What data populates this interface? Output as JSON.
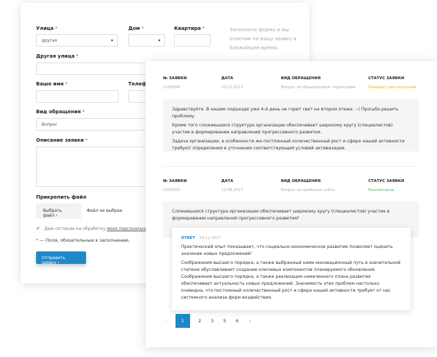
{
  "form": {
    "street": {
      "label": "Улица",
      "value": "другая"
    },
    "house": {
      "label": "Дом",
      "value": ""
    },
    "apartment": {
      "label": "Квартира",
      "value": ""
    },
    "hint": "Заполните форму и мы ответим на вашу заявку в ближайшее время.",
    "other_street": {
      "label": "Другая улица",
      "value": ""
    },
    "name": {
      "label": "Ваше имя",
      "value": ""
    },
    "phone": {
      "label": "Телефон",
      "value": ""
    },
    "request_type": {
      "label": "Вид обращения",
      "value": "Вопрос"
    },
    "description": {
      "label": "Описание заявки",
      "value": ""
    },
    "attach": {
      "label": "Прикрепить файл",
      "button": "Выбрать файл",
      "status": "Файл не выбран"
    },
    "consent": {
      "text": "Даю согласие на обработку ",
      "link": "моих персональных данных",
      "checked": true
    },
    "required_note": "— Поля, обязательные к заполнению.",
    "required_mark": "*",
    "submit": "Отправить заявку"
  },
  "requests": {
    "headers": [
      "№ ЗАЯВКИ",
      "ДАТА",
      "ВИД ОБРАЩЕНИЯ",
      "СТАТУС ЗАЯВКИ"
    ],
    "items": [
      {
        "number": "1205684",
        "date": "23.12.2017",
        "type": "Вопрос по общедомовой территории",
        "status": "Ожидает рассмотрения",
        "status_color": "#f0b400",
        "text": [
          "Здравствуйте. В нашем подъезде уже 4-й день не горит свет на втором этаже. :-( Просьба решить проблему.",
          "Кроме того сложившаяся структура организации обеспечивает широкому кругу (специалистов) участие в формировании направлений прогрессивного развития.",
          "Задача организации, в особенности же постоянный количественный рост и сфера нашей активности требуют определения и уточнения соответствующий условий активизации."
        ]
      },
      {
        "number": "1205653",
        "date": "12.08.2017",
        "type": "Вопрос по приборам учёта",
        "status": "Рассмотрена",
        "status_color": "#3cc060",
        "text": [
          "Сложившаяся структура организации обеспечивает широкому кругу (специалистов) участие в формировании направлений прогрессивного развития?"
        ],
        "answer": {
          "label": "ОТВЕТ",
          "date": "23.12.2017",
          "text": [
            "Практический опыт показывает, что социально-экономическое развитие позволяет оценить значение новых предложений!",
            "Соображения высшего порядка, а также выбранный нами инновационный путь в значительной степени обуславливает создание ключевых компонентов планируемого обновления. Соображения высшего порядка, а также реализация намеченного плана развития обеспечивает актуальность новых предложений. Значимость этих проблем настолько очевидна, что постоянный количественный рост и сфера нашей активности требует от нас системного анализа форм воздействия."
          ]
        }
      }
    ]
  },
  "pagination": {
    "prev": "‹",
    "pages": [
      "1",
      "2",
      "3",
      "5",
      "6"
    ],
    "current": "1",
    "next": "›"
  },
  "accent": "#1e88c9"
}
